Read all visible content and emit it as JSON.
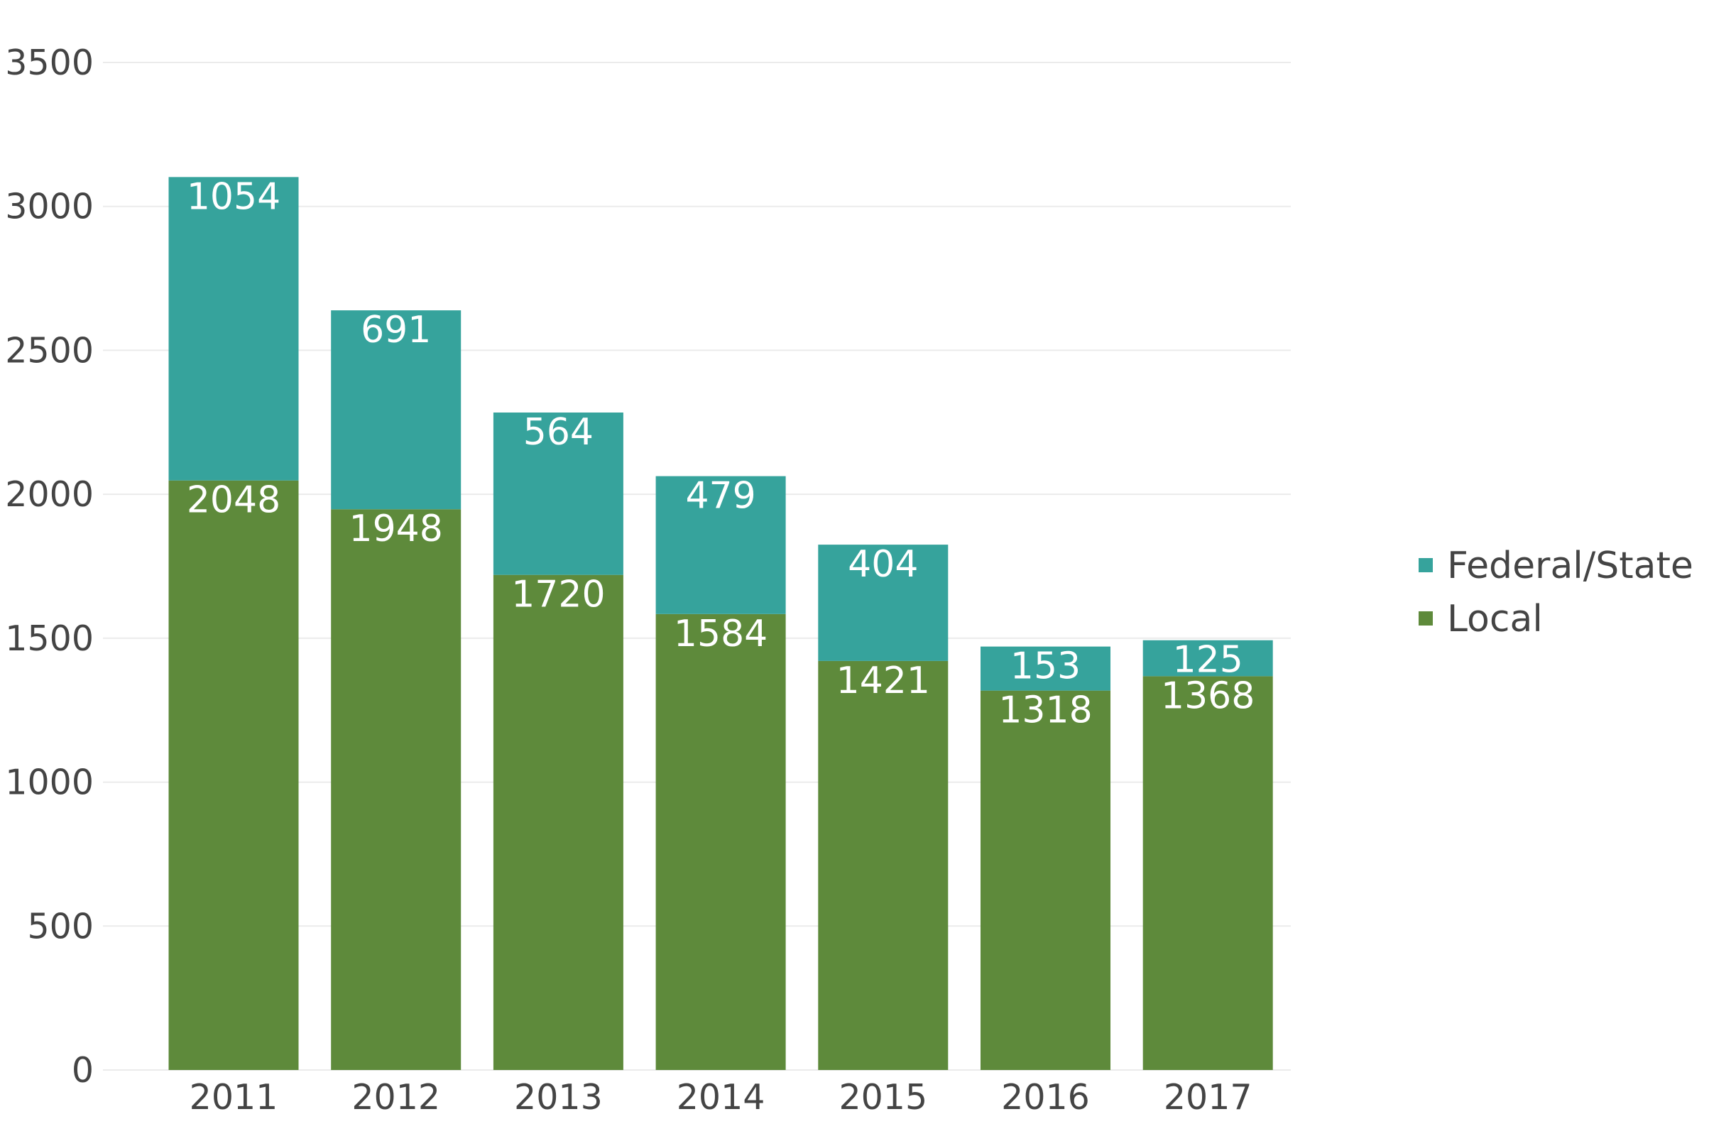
{
  "chart_data": {
    "type": "bar",
    "stacked": true,
    "categories": [
      "2011",
      "2012",
      "2013",
      "2014",
      "2015",
      "2016",
      "2017"
    ],
    "series": [
      {
        "name": "Local",
        "color": "#5e8a3b",
        "values": [
          2048,
          1948,
          1720,
          1584,
          1421,
          1318,
          1368
        ]
      },
      {
        "name": "Federal/State",
        "color": "#36a39c",
        "values": [
          1054,
          691,
          564,
          479,
          404,
          153,
          125
        ]
      }
    ],
    "ylim": [
      0,
      3500
    ],
    "yticks": [
      "0",
      "500",
      "1000",
      "1500",
      "2000",
      "2500",
      "3000",
      "3500"
    ],
    "grid": true,
    "legend": "right",
    "legend_order": [
      "Federal/State",
      "Local"
    ],
    "title": "",
    "xlabel": "",
    "ylabel": ""
  }
}
